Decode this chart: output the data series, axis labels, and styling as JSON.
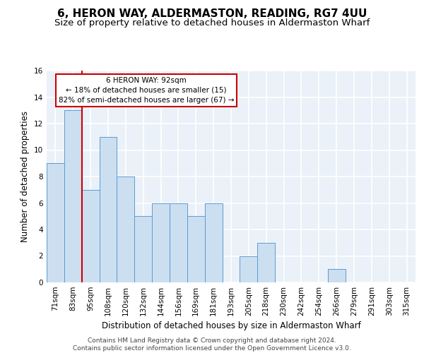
{
  "title": "6, HERON WAY, ALDERMASTON, READING, RG7 4UU",
  "subtitle": "Size of property relative to detached houses in Aldermaston Wharf",
  "xlabel": "Distribution of detached houses by size in Aldermaston Wharf",
  "ylabel": "Number of detached properties",
  "categories": [
    "71sqm",
    "83sqm",
    "95sqm",
    "108sqm",
    "120sqm",
    "132sqm",
    "144sqm",
    "156sqm",
    "169sqm",
    "181sqm",
    "193sqm",
    "205sqm",
    "218sqm",
    "230sqm",
    "242sqm",
    "254sqm",
    "266sqm",
    "279sqm",
    "291sqm",
    "303sqm",
    "315sqm"
  ],
  "values": [
    9,
    13,
    7,
    11,
    8,
    5,
    6,
    6,
    5,
    6,
    0,
    2,
    3,
    0,
    0,
    0,
    1,
    0,
    0,
    0,
    0
  ],
  "bar_color": "#ccdff0",
  "bar_edge_color": "#5b9bd5",
  "background_color": "#eaf1f8",
  "grid_color": "#ffffff",
  "annotation_text": "6 HERON WAY: 92sqm\n← 18% of detached houses are smaller (15)\n82% of semi-detached houses are larger (67) →",
  "annotation_box_color": "#ffffff",
  "annotation_box_edge_color": "#cc0000",
  "vline_x": 1.5,
  "vline_color": "#cc0000",
  "ylim": [
    0,
    16
  ],
  "yticks": [
    0,
    2,
    4,
    6,
    8,
    10,
    12,
    14,
    16
  ],
  "footer": "Contains HM Land Registry data © Crown copyright and database right 2024.\nContains public sector information licensed under the Open Government Licence v3.0.",
  "title_fontsize": 11,
  "subtitle_fontsize": 9.5,
  "xlabel_fontsize": 8.5,
  "ylabel_fontsize": 8.5,
  "tick_fontsize": 7.5,
  "annotation_fontsize": 7.5,
  "footer_fontsize": 6.5
}
